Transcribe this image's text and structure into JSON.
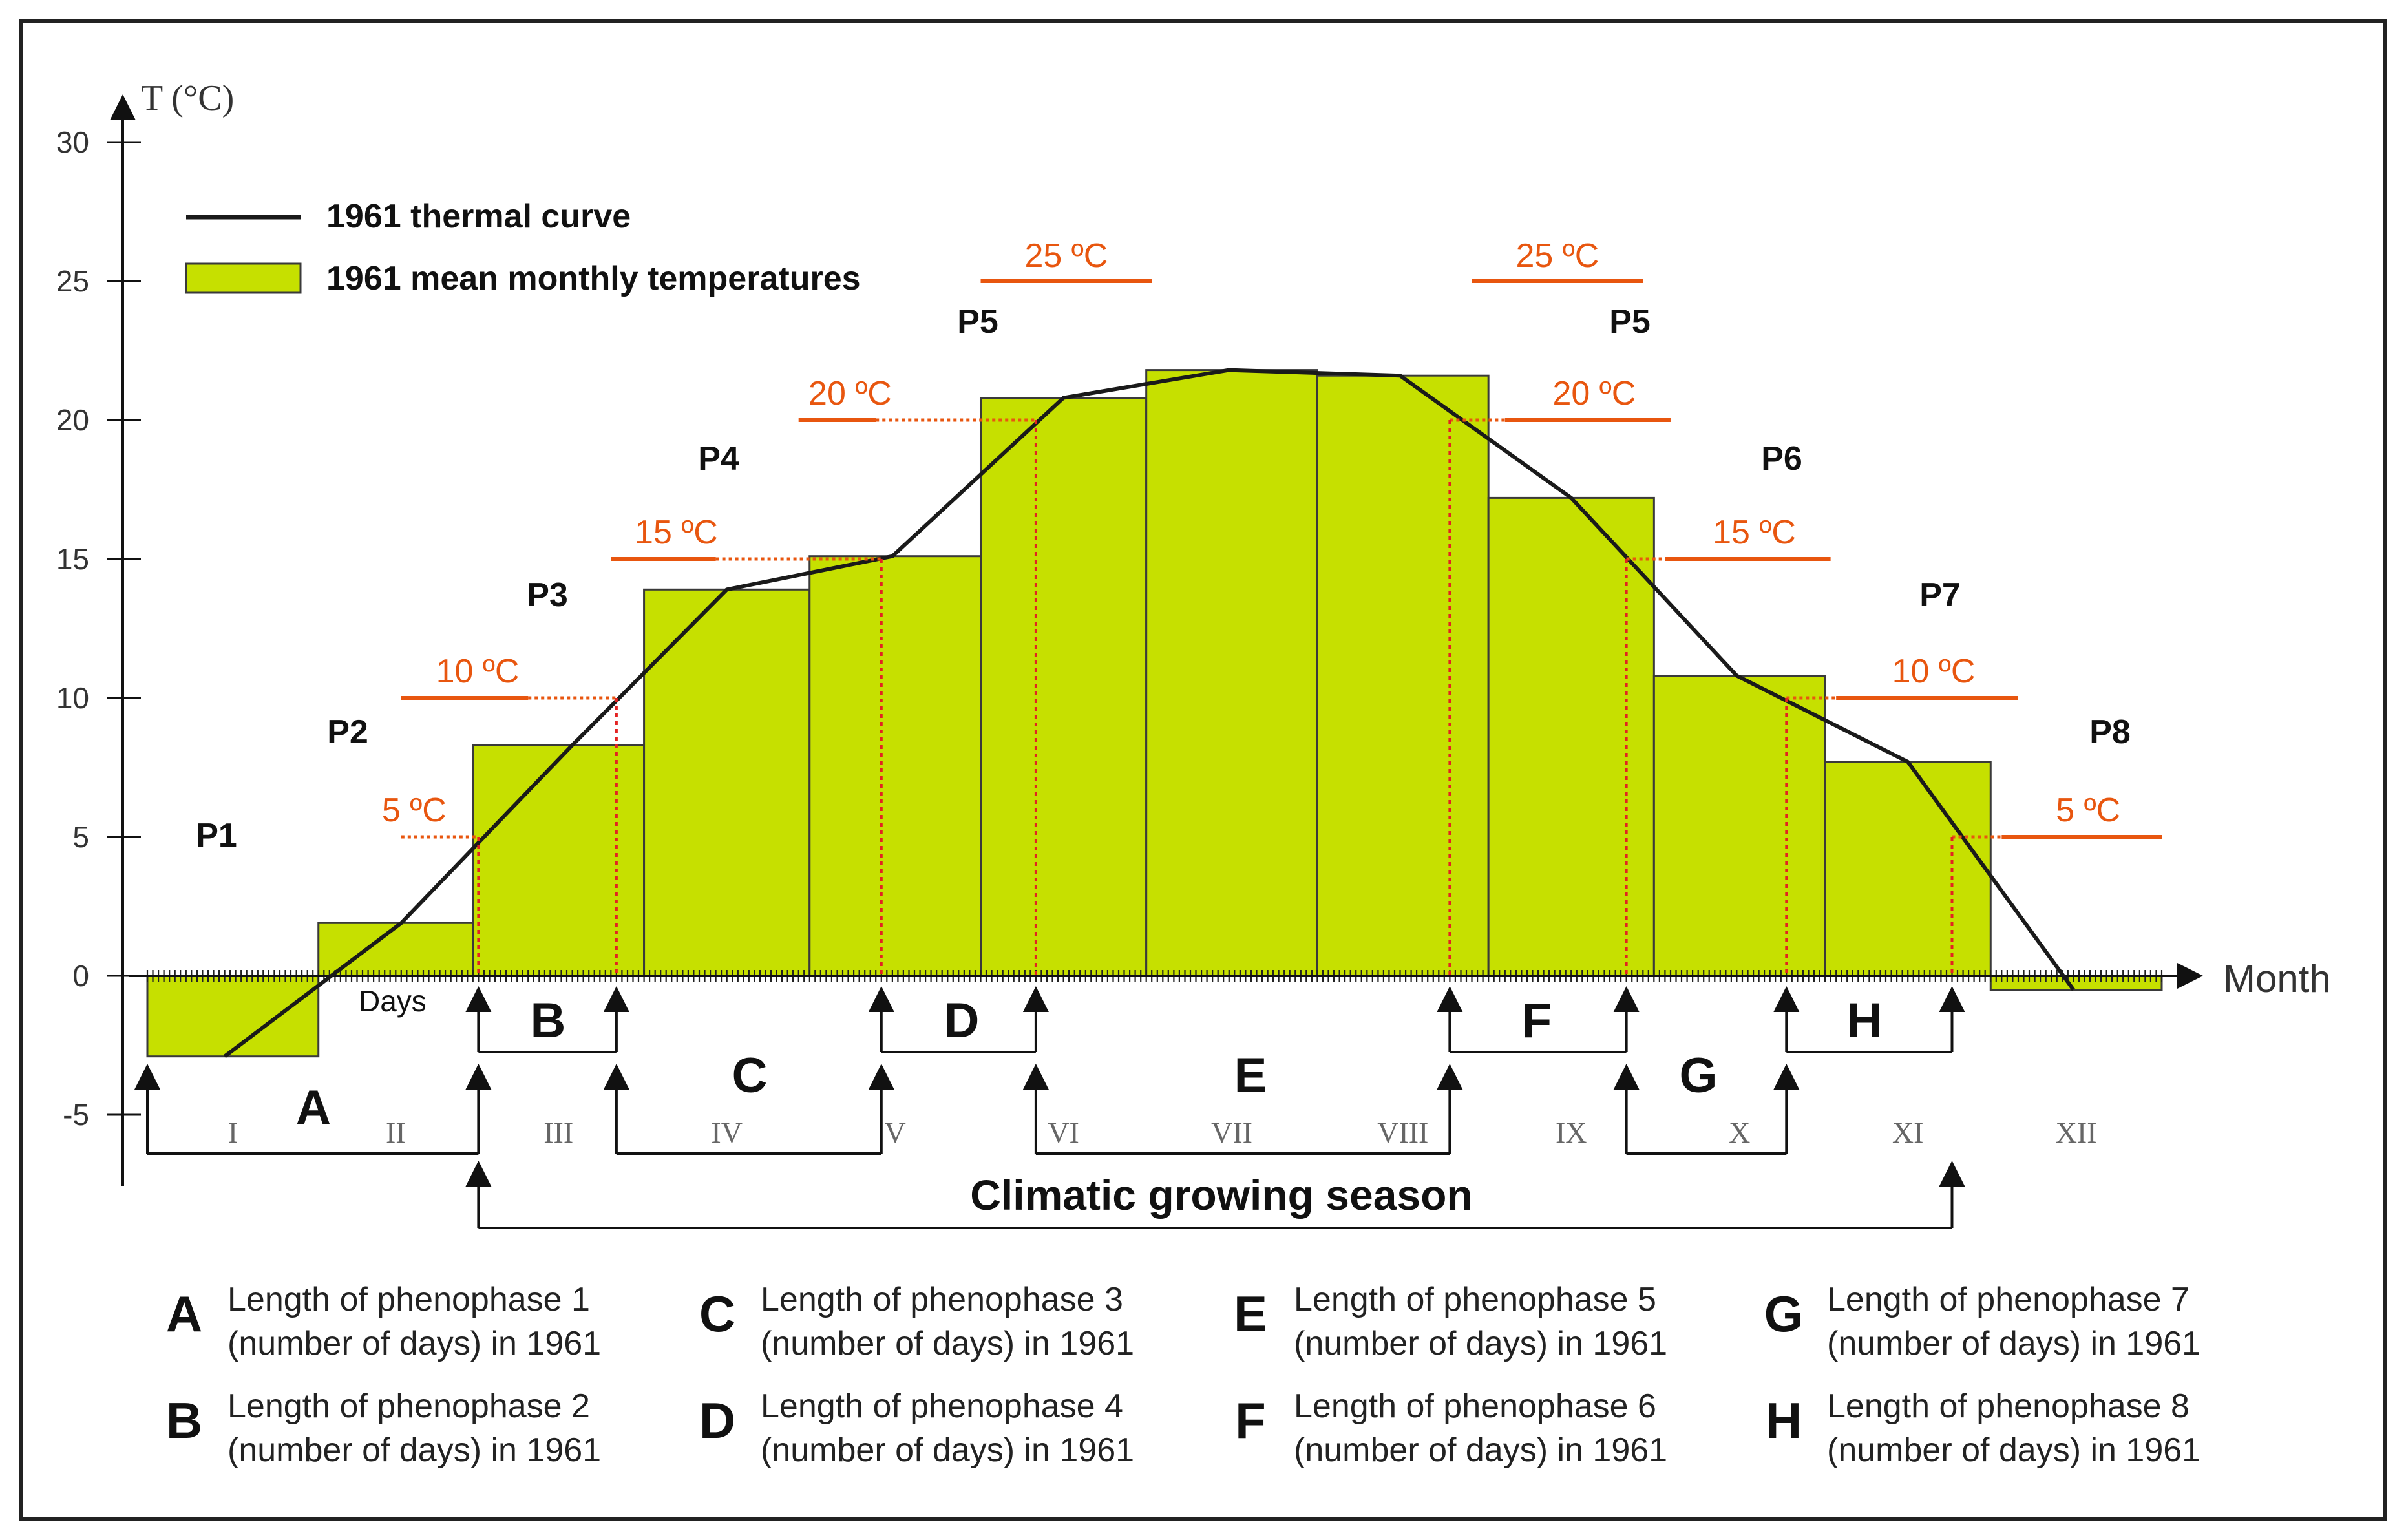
{
  "chart_data": {
    "type": "bar",
    "title": "",
    "ylabel": "T (°C)",
    "xlabel": "Month",
    "days_label": "Days",
    "ylim": [
      -5,
      30
    ],
    "yticks": [
      -5,
      0,
      5,
      10,
      15,
      20,
      25,
      30
    ],
    "xlim": [
      0,
      365
    ],
    "categories": [
      "I",
      "II",
      "III",
      "IV",
      "V",
      "VI",
      "VII",
      "VIII",
      "IX",
      "X",
      "XI",
      "XII"
    ],
    "month_starts": [
      0,
      31,
      59,
      90,
      120,
      151,
      181,
      212,
      243,
      273,
      304,
      334,
      365
    ],
    "series": [
      {
        "name": "1961 mean monthly temperatures",
        "type": "bar",
        "color": "#c6e000",
        "values": [
          -2.9,
          1.9,
          8.3,
          13.9,
          15.1,
          20.8,
          21.8,
          21.6,
          17.2,
          10.8,
          7.7,
          -0.5
        ]
      },
      {
        "name": "1961 thermal curve",
        "type": "line",
        "color": "#1a1a1a",
        "x": [
          14,
          46,
          77,
          105,
          135,
          166,
          196,
          227,
          258,
          288,
          319,
          349
        ],
        "y": [
          -2.9,
          1.9,
          8.3,
          13.9,
          15.1,
          20.8,
          21.8,
          21.6,
          17.2,
          10.8,
          7.7,
          -0.5
        ]
      }
    ],
    "thresholds": [
      {
        "label": "5 ºC",
        "value": 5,
        "day_rise": 60,
        "day_fall": 327
      },
      {
        "label": "10 ºC",
        "value": 10,
        "day_rise": 85,
        "day_fall": 297
      },
      {
        "label": "15 ºC",
        "value": 15,
        "day_rise": 133,
        "day_fall": 268
      },
      {
        "label": "20 ºC",
        "value": 20,
        "day_rise": 161,
        "day_fall": 236
      },
      {
        "label": "25 ºC",
        "value": 25
      }
    ],
    "phase_labels": [
      "P1",
      "P2",
      "P3",
      "P4",
      "P5",
      "P5",
      "P6",
      "P7",
      "P8"
    ],
    "phenophase_letters": [
      "A",
      "B",
      "C",
      "D",
      "E",
      "F",
      "G",
      "H"
    ],
    "growing_season_label": "Climatic  growing  season",
    "legend_position": "top-left",
    "threshold_color": "#e8560f"
  },
  "legend": [
    {
      "letter": "A",
      "line1": "Length of phenophase 1",
      "line2": "(number of days) in 1961"
    },
    {
      "letter": "C",
      "line1": "Length of phenophase 3",
      "line2": "(number of days) in 1961"
    },
    {
      "letter": "E",
      "line1": "Length of phenophase 5",
      "line2": "(number of days) in 1961"
    },
    {
      "letter": "G",
      "line1": "Length of phenophase 7",
      "line2": "(number of days) in 1961"
    },
    {
      "letter": "B",
      "line1": "Length of phenophase 2",
      "line2": "(number of days) in 1961"
    },
    {
      "letter": "D",
      "line1": "Length of phenophase 4",
      "line2": "(number of days) in 1961"
    },
    {
      "letter": "F",
      "line1": "Length of phenophase 6",
      "line2": "(number of days) in 1961"
    },
    {
      "letter": "H",
      "line1": "Length of phenophase 8",
      "line2": "(number of days) in 1961"
    }
  ]
}
